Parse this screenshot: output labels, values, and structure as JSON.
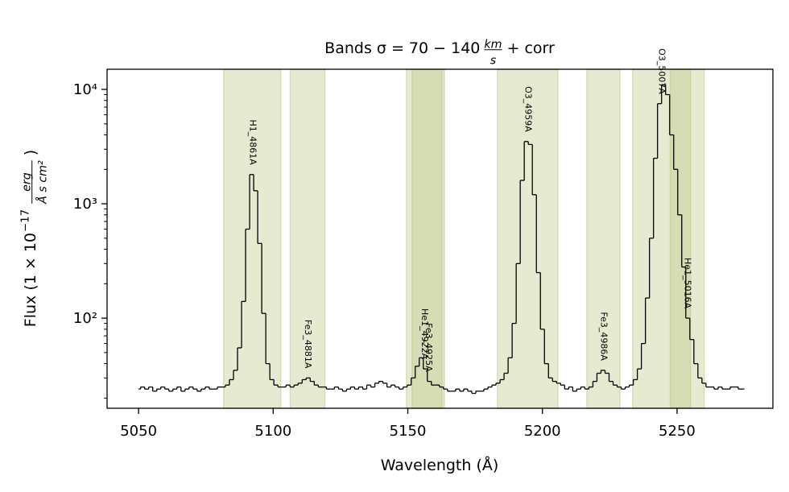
{
  "chart_data": {
    "type": "step",
    "title": {
      "prefix": "Bands σ = 70 − 140",
      "numerator": "km",
      "denominator": "s",
      "suffix": "+ corr"
    },
    "xlabel": "Wavelength (Å)",
    "ylabel": {
      "prefix": "Flux (1 × 10",
      "exponent": "−17",
      "numerator": "erg",
      "denominator": "Å s cm²",
      "suffix": ")"
    },
    "xlim": [
      5038.3,
      5285.6
    ],
    "xticks": [
      5050,
      5100,
      5150,
      5200,
      5250
    ],
    "ylim": [
      16.3,
      15000
    ],
    "ylog": true,
    "yticks": [
      {
        "value": 100,
        "label": "10²"
      },
      {
        "value": 1000,
        "label": "10³"
      },
      {
        "value": 10000,
        "label": "10⁴"
      }
    ],
    "yminorticks": [
      20,
      30,
      40,
      50,
      60,
      70,
      80,
      90,
      200,
      300,
      400,
      500,
      600,
      700,
      800,
      900,
      2000,
      3000,
      4000,
      5000,
      6000,
      7000,
      8000,
      9000
    ],
    "band_color": "#b8c47a",
    "line_color": "#000000",
    "bands": [
      {
        "name": "H1_4861A",
        "range": [
          5081.6,
          5102.8
        ]
      },
      {
        "name": "Fe3_4881A",
        "range": [
          5106.3,
          5119.2
        ]
      },
      {
        "name": "He1_4922A",
        "range": [
          5149.5,
          5162.7
        ]
      },
      {
        "name": "Fe3_4925A",
        "range": [
          5151.6,
          5163.6
        ]
      },
      {
        "name": "O3_4959A",
        "range": [
          5183.3,
          5205.7
        ]
      },
      {
        "name": "Fe3_4986A",
        "range": [
          5216.5,
          5228.8
        ]
      },
      {
        "name": "O3_5007A",
        "range": [
          5233.5,
          5255.0
        ]
      },
      {
        "name": "He1_5016A",
        "range": [
          5247.5,
          5260.1
        ]
      }
    ],
    "x": [
      5050,
      5051.5,
      5053,
      5054.5,
      5056,
      5057.5,
      5059,
      5060.5,
      5062,
      5063.5,
      5065,
      5066.5,
      5068,
      5069.5,
      5071,
      5072.5,
      5074,
      5075.5,
      5077,
      5078.5,
      5080,
      5081.5,
      5083,
      5084.5,
      5086,
      5087.5,
      5089,
      5090.5,
      5092,
      5093.5,
      5095,
      5096.5,
      5098,
      5099.5,
      5101,
      5102.5,
      5104,
      5105.5,
      5107,
      5108.5,
      5110,
      5111.5,
      5113,
      5114.5,
      5116,
      5117.5,
      5119,
      5120.5,
      5122,
      5123.5,
      5125,
      5126.5,
      5128,
      5129.5,
      5131,
      5132.5,
      5134,
      5135.5,
      5137,
      5138.5,
      5140,
      5141.5,
      5143,
      5144.5,
      5146,
      5147.5,
      5149,
      5150.5,
      5152,
      5153.5,
      5155,
      5156.5,
      5158,
      5159.5,
      5161,
      5162.5,
      5164,
      5165.5,
      5167,
      5168.5,
      5170,
      5171.5,
      5173,
      5174.5,
      5176,
      5177.5,
      5179,
      5180.5,
      5182,
      5183.5,
      5185,
      5186.5,
      5188,
      5189.5,
      5191,
      5192.5,
      5194,
      5195.5,
      5197,
      5198.5,
      5200,
      5201.5,
      5203,
      5204.5,
      5206,
      5207.5,
      5209,
      5210.5,
      5212,
      5213.5,
      5215,
      5216.5,
      5218,
      5219.5,
      5221,
      5222.5,
      5224,
      5225.5,
      5227,
      5228.5,
      5230,
      5231.5,
      5233,
      5234.5,
      5236,
      5237.5,
      5239,
      5240.5,
      5242,
      5243.5,
      5245,
      5246.5,
      5248,
      5249.5,
      5251,
      5252.5,
      5254,
      5255.5,
      5257,
      5258.5,
      5260,
      5261.5,
      5263,
      5264.5,
      5266,
      5267.5,
      5269,
      5270.5,
      5272,
      5273.5,
      5275
    ],
    "values": [
      24,
      25,
      24,
      25,
      23,
      24,
      25,
      24,
      23,
      24,
      25,
      23,
      24,
      25,
      24,
      23,
      24,
      25,
      24,
      24,
      25,
      25,
      26,
      29,
      35,
      55,
      140,
      600,
      1800,
      1300,
      450,
      110,
      40,
      29,
      26,
      25,
      25,
      26,
      25,
      26,
      27,
      29,
      30,
      28,
      26,
      25,
      25,
      24,
      24,
      25,
      24,
      23,
      24,
      25,
      24,
      25,
      24,
      26,
      25,
      27,
      28,
      27,
      25,
      26,
      25,
      24,
      25,
      26,
      30,
      38,
      45,
      36,
      28,
      26,
      26,
      25,
      24,
      23,
      23,
      24,
      23,
      24,
      23,
      22,
      23,
      23,
      24,
      25,
      26,
      27,
      29,
      33,
      45,
      90,
      300,
      1600,
      3500,
      3300,
      1200,
      250,
      80,
      40,
      30,
      28,
      27,
      26,
      24,
      25,
      23,
      24,
      25,
      24,
      25,
      28,
      33,
      35,
      33,
      28,
      26,
      25,
      24,
      25,
      26,
      29,
      36,
      60,
      150,
      500,
      2500,
      7500,
      11000,
      9000,
      4000,
      2000,
      800,
      280,
      100,
      65,
      40,
      30,
      27,
      25,
      25,
      24,
      25,
      24,
      24,
      25,
      25,
      24,
      24
    ]
  }
}
